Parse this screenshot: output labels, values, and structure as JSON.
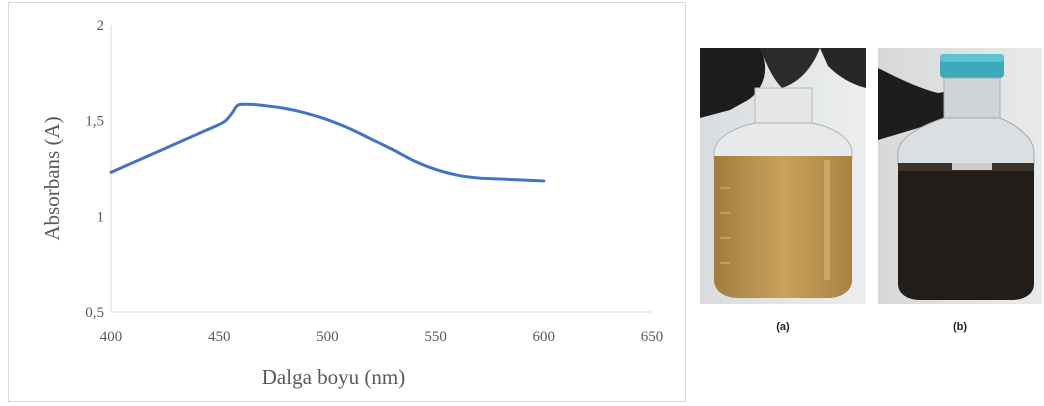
{
  "chart_data": {
    "type": "line",
    "xlabel": "Dalga boyu (nm)",
    "ylabel": "Absorbans (A)",
    "xlim": [
      400,
      650
    ],
    "ylim": [
      0.5,
      2
    ],
    "x_ticks": [
      "400",
      "450",
      "500",
      "550",
      "600",
      "650"
    ],
    "y_ticks": [
      "0,5",
      "1",
      "1,5",
      "2"
    ],
    "grid": false,
    "series": [
      {
        "color": "#4472c4",
        "x": [
          400,
          410,
          420,
          430,
          440,
          450,
          453,
          456,
          458,
          460,
          465,
          470,
          480,
          490,
          500,
          510,
          520,
          530,
          540,
          550,
          560,
          570,
          580,
          590,
          600
        ],
        "y": [
          1.23,
          1.28,
          1.33,
          1.38,
          1.43,
          1.48,
          1.5,
          1.54,
          1.575,
          1.585,
          1.585,
          1.58,
          1.565,
          1.54,
          1.505,
          1.46,
          1.405,
          1.35,
          1.29,
          1.245,
          1.215,
          1.2,
          1.195,
          1.19,
          1.185
        ]
      }
    ]
  },
  "photos": {
    "a": {
      "caption": "(a)"
    },
    "b": {
      "caption": "(b)"
    }
  },
  "colors": {
    "line": "#4472c4",
    "axis": "#d9d9d9",
    "text": "#595959"
  }
}
